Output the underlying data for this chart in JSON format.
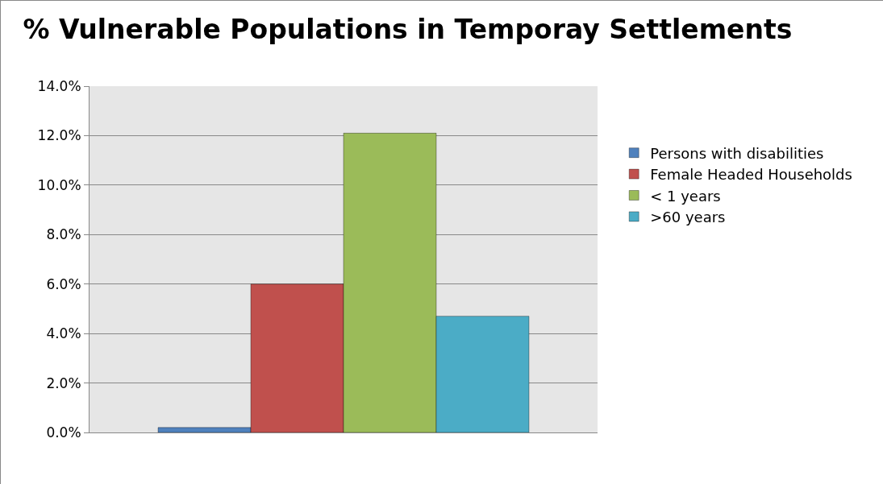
{
  "chart_data": {
    "type": "bar",
    "title": "% Vulnerable Populations in Temporay Settlements",
    "categories": [
      null
    ],
    "series": [
      {
        "name": "Persons with disabilities",
        "color": "#4f81bd",
        "values": [
          0.2
        ]
      },
      {
        "name": "Female Headed Households",
        "color": "#c0504d",
        "values": [
          6.0
        ]
      },
      {
        "name": "< 1 years",
        "color": "#9bbb59",
        "values": [
          12.1
        ]
      },
      {
        "name": ">60 years",
        "color": "#4bacc6",
        "values": [
          4.7
        ]
      }
    ],
    "ylim": [
      0,
      14
    ],
    "yticks": [
      {
        "value": 0,
        "label": "0.0%"
      },
      {
        "value": 2,
        "label": "2.0%"
      },
      {
        "value": 4,
        "label": "4.0%"
      },
      {
        "value": 6,
        "label": "6.0%"
      },
      {
        "value": 8,
        "label": "8.0%"
      },
      {
        "value": 10,
        "label": "10.0%"
      },
      {
        "value": 12,
        "label": "12.0%"
      },
      {
        "value": 14,
        "label": "14.0%"
      }
    ],
    "grid": "y",
    "legend": "right",
    "tick_labels": "y"
  }
}
